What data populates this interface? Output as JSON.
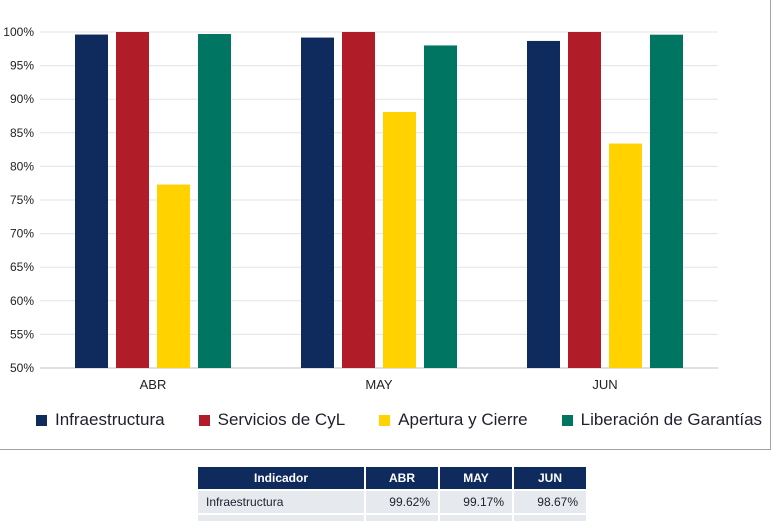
{
  "chart_data": {
    "type": "bar",
    "categories": [
      "ABR",
      "MAY",
      "JUN"
    ],
    "series": [
      {
        "name": "Infraestructura",
        "color": "#0f2a5c",
        "values": [
          99.62,
          99.17,
          98.67
        ]
      },
      {
        "name": "Servicios de CyL",
        "color": "#b01c28",
        "values": [
          100,
          100,
          100
        ]
      },
      {
        "name": "Apertura y Cierre",
        "color": "#ffd200",
        "values": [
          77.3,
          88.1,
          83.4
        ]
      },
      {
        "name": "Liberación de Garantías",
        "color": "#007562",
        "values": [
          99.7,
          98.0,
          99.6
        ]
      }
    ],
    "ylim": [
      50,
      100
    ],
    "yticks": [
      "100%",
      "95%",
      "90%",
      "85%",
      "80%",
      "75%",
      "70%",
      "65%",
      "60%",
      "55%",
      "50%"
    ],
    "grid": true,
    "legend": "bottom"
  },
  "table": {
    "headers": [
      "Indicador",
      "ABR",
      "MAY",
      "JUN"
    ],
    "rows": [
      {
        "name": "Infraestructura",
        "values": [
          "99.62%",
          "99.17%",
          "98.67%"
        ]
      }
    ]
  }
}
